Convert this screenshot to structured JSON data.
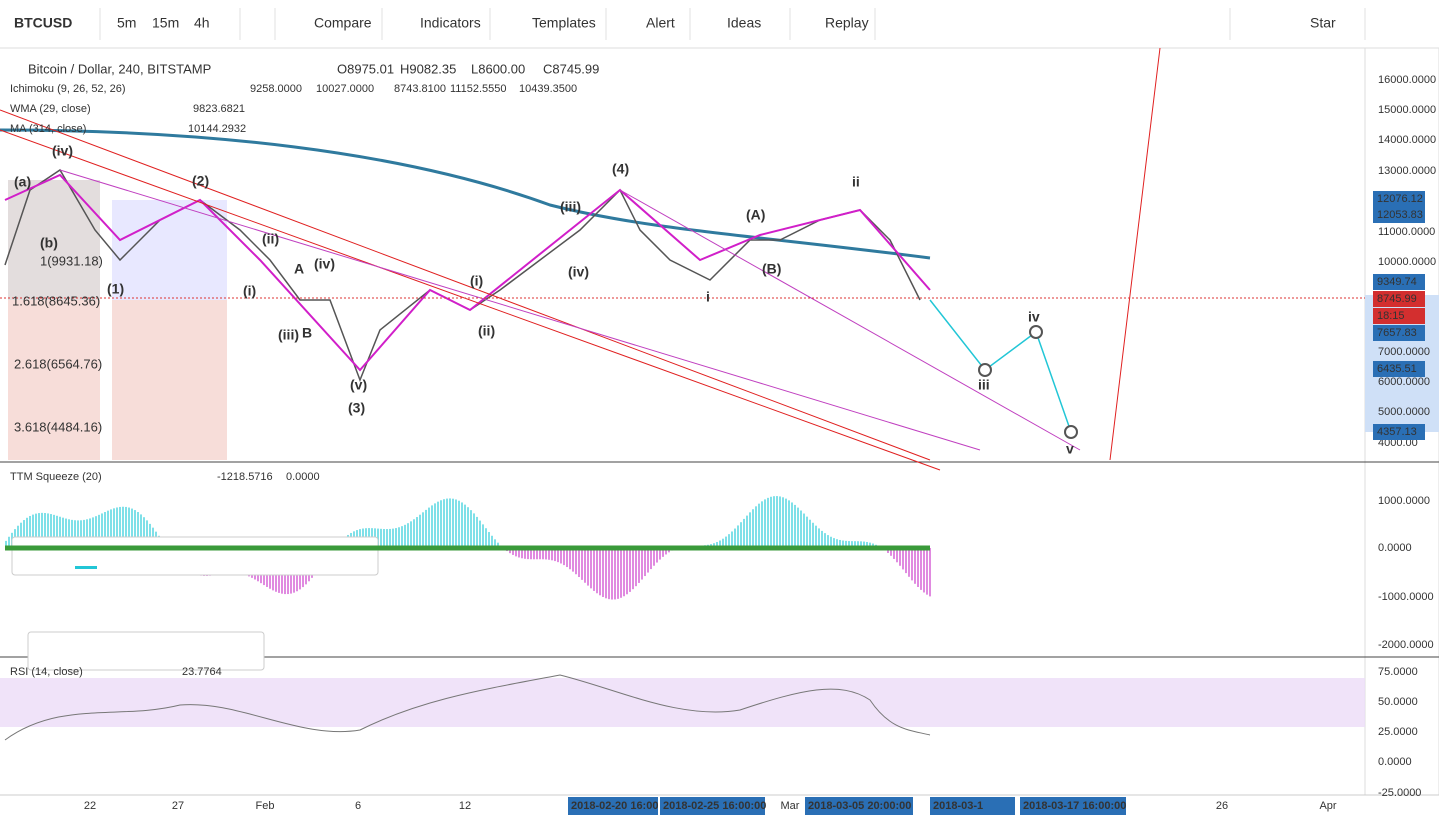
{
  "toolbar": {
    "symbol": "BTCUSD",
    "intervals": [
      "5m",
      "15m",
      "4h"
    ],
    "buttons": [
      "Compare",
      "Indicators",
      "Templates",
      "Alert",
      "Ideas",
      "Replay"
    ],
    "layout": "Star"
  },
  "legend": {
    "title": "Bitcoin / Dollar, 240, BITSTAMP",
    "ohlc": [
      "O8975.01",
      "H9082.35",
      "L8600.00",
      "C8745.99"
    ],
    "indicators": [
      {
        "name": "Ichimoku (9, 26, 52, 26)",
        "values": [
          "9258.0000",
          "10027.0000",
          "8743.8100",
          "11152.5550",
          "10439.3500"
        ]
      },
      {
        "name": "WMA (29, close)",
        "values": [
          "9823.6821"
        ]
      },
      {
        "name": "MA (314, close)",
        "values": [
          "10144.2932"
        ]
      }
    ]
  },
  "price_axis": [
    "16000.0000",
    "15000.0000",
    "14000.0000",
    "13000.0000",
    "11000.0000",
    "10000.0000",
    "7000.0000",
    "6000.0000",
    "5000.0000",
    "4000.00"
  ],
  "price_tags": [
    "12076.12",
    "12053.83",
    "9349.74",
    "8745.99",
    "18:15",
    "7657.83",
    "6435.51",
    "4357.13"
  ],
  "fib_labels": [
    "1(9931.18)",
    "1.618(8645.36)",
    "2.618(6564.76)",
    "3.618(4484.16)"
  ],
  "wave_labels": [
    "(iv)",
    "(a)",
    "(b)",
    "(2)",
    "(1)",
    "(ii)",
    "(i)",
    "(iii)",
    "(iv)",
    "(v)",
    "(3)",
    "(4)",
    "(iii)",
    "(iv)",
    "(i)",
    "(ii)",
    "ii",
    "iv",
    "iii",
    "v",
    "(A)",
    "(B)",
    "i",
    "A",
    "B"
  ],
  "ttm": {
    "title": "TTM Squeeze (20)",
    "values": [
      "-1218.5716",
      "0.0000"
    ],
    "axis": [
      "1000.0000",
      "0.0000",
      "-1000.0000",
      "-2000.0000"
    ]
  },
  "rsi": {
    "title": "RSI (14, close)",
    "value": "23.7764",
    "axis": [
      "75.0000",
      "50.0000",
      "25.0000",
      "0.0000",
      "-25.0000"
    ]
  },
  "x_axis": [
    "22",
    "27",
    "Feb",
    "6",
    "12",
    "Mar",
    "26",
    "Apr"
  ],
  "date_tags": [
    "2018-02-20 16:00",
    "2018-02-25 16:00:00",
    "2018-03-05 20:00:00",
    "2018-03-1",
    "2018-03-17 16:00:00"
  ]
}
